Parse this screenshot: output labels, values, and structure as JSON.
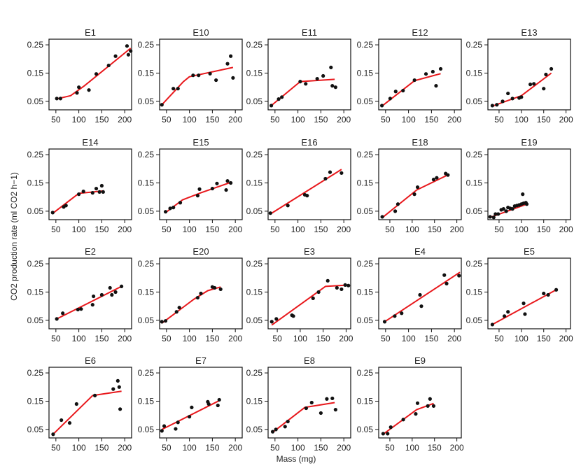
{
  "figure": {
    "ylabel": "CO2 production rate (ml CO2 h−1)",
    "xlabel": "Mass (mg)"
  },
  "chart_data": [
    {
      "type": "scatter",
      "title": "E1",
      "xlim": [
        35,
        215
      ],
      "ylim": [
        0.02,
        0.27
      ],
      "xticks": [
        50,
        100,
        150,
        200
      ],
      "yticks": [
        0.05,
        0.15,
        0.25
      ],
      "points": [
        [
          52,
          0.06
        ],
        [
          60,
          0.06
        ],
        [
          96,
          0.08
        ],
        [
          100,
          0.1
        ],
        [
          122,
          0.09
        ],
        [
          138,
          0.147
        ],
        [
          165,
          0.177
        ],
        [
          180,
          0.21
        ],
        [
          205,
          0.246
        ],
        [
          208,
          0.215
        ],
        [
          213,
          0.228
        ]
      ],
      "fit": [
        [
          50,
          0.058
        ],
        [
          82,
          0.07
        ],
        [
          112,
          0.105
        ],
        [
          213,
          0.238
        ]
      ]
    },
    {
      "type": "scatter",
      "title": "E10",
      "xlim": [
        35,
        215
      ],
      "ylim": [
        0.02,
        0.27
      ],
      "xticks": [
        50,
        100,
        150,
        200
      ],
      "yticks": [
        0.05,
        0.15,
        0.25
      ],
      "points": [
        [
          40,
          0.038
        ],
        [
          65,
          0.095
        ],
        [
          75,
          0.095
        ],
        [
          108,
          0.142
        ],
        [
          120,
          0.142
        ],
        [
          145,
          0.148
        ],
        [
          158,
          0.125
        ],
        [
          183,
          0.183
        ],
        [
          190,
          0.21
        ],
        [
          195,
          0.133
        ]
      ],
      "fit": [
        [
          40,
          0.038
        ],
        [
          87,
          0.12
        ],
        [
          100,
          0.137
        ],
        [
          195,
          0.17
        ]
      ]
    },
    {
      "type": "scatter",
      "title": "E11",
      "xlim": [
        35,
        215
      ],
      "ylim": [
        0.02,
        0.27
      ],
      "xticks": [
        50,
        100,
        150,
        200
      ],
      "yticks": [
        0.05,
        0.15,
        0.25
      ],
      "points": [
        [
          42,
          0.035
        ],
        [
          58,
          0.058
        ],
        [
          65,
          0.065
        ],
        [
          105,
          0.12
        ],
        [
          117,
          0.112
        ],
        [
          142,
          0.13
        ],
        [
          155,
          0.14
        ],
        [
          172,
          0.17
        ],
        [
          175,
          0.105
        ],
        [
          182,
          0.1
        ]
      ],
      "fit": [
        [
          42,
          0.035
        ],
        [
          105,
          0.12
        ],
        [
          180,
          0.128
        ]
      ]
    },
    {
      "type": "scatter",
      "title": "E12",
      "xlim": [
        35,
        215
      ],
      "ylim": [
        0.02,
        0.27
      ],
      "xticks": [
        50,
        100,
        150,
        200
      ],
      "yticks": [
        0.05,
        0.15,
        0.25
      ],
      "points": [
        [
          42,
          0.035
        ],
        [
          60,
          0.06
        ],
        [
          72,
          0.085
        ],
        [
          88,
          0.088
        ],
        [
          113,
          0.125
        ],
        [
          138,
          0.147
        ],
        [
          153,
          0.155
        ],
        [
          160,
          0.105
        ],
        [
          170,
          0.165
        ]
      ],
      "fit": [
        [
          42,
          0.033
        ],
        [
          113,
          0.123
        ],
        [
          170,
          0.148
        ]
      ]
    },
    {
      "type": "scatter",
      "title": "E13",
      "xlim": [
        25,
        210
      ],
      "ylim": [
        0.02,
        0.27
      ],
      "xticks": [
        50,
        100,
        150,
        200
      ],
      "yticks": [
        0.05,
        0.15,
        0.25
      ],
      "points": [
        [
          35,
          0.035
        ],
        [
          45,
          0.038
        ],
        [
          58,
          0.05
        ],
        [
          70,
          0.078
        ],
        [
          80,
          0.06
        ],
        [
          95,
          0.062
        ],
        [
          100,
          0.065
        ],
        [
          120,
          0.11
        ],
        [
          128,
          0.112
        ],
        [
          150,
          0.095
        ],
        [
          155,
          0.145
        ],
        [
          167,
          0.165
        ]
      ],
      "fit": [
        [
          35,
          0.033
        ],
        [
          100,
          0.07
        ],
        [
          167,
          0.15
        ]
      ]
    },
    {
      "type": "scatter",
      "title": "E14",
      "xlim": [
        35,
        215
      ],
      "ylim": [
        0.02,
        0.27
      ],
      "xticks": [
        50,
        100,
        150,
        200
      ],
      "yticks": [
        0.05,
        0.15,
        0.25
      ],
      "points": [
        [
          43,
          0.045
        ],
        [
          67,
          0.065
        ],
        [
          72,
          0.07
        ],
        [
          100,
          0.11
        ],
        [
          110,
          0.12
        ],
        [
          130,
          0.115
        ],
        [
          138,
          0.13
        ],
        [
          145,
          0.118
        ],
        [
          150,
          0.14
        ],
        [
          153,
          0.118
        ]
      ],
      "fit": [
        [
          43,
          0.042
        ],
        [
          100,
          0.113
        ],
        [
          155,
          0.122
        ]
      ]
    },
    {
      "type": "scatter",
      "title": "E15",
      "xlim": [
        35,
        215
      ],
      "ylim": [
        0.02,
        0.27
      ],
      "xticks": [
        50,
        100,
        150,
        200
      ],
      "yticks": [
        0.05,
        0.15,
        0.25
      ],
      "points": [
        [
          48,
          0.048
        ],
        [
          58,
          0.06
        ],
        [
          65,
          0.063
        ],
        [
          80,
          0.08
        ],
        [
          118,
          0.105
        ],
        [
          122,
          0.128
        ],
        [
          150,
          0.13
        ],
        [
          160,
          0.148
        ],
        [
          180,
          0.125
        ],
        [
          183,
          0.157
        ],
        [
          190,
          0.15
        ]
      ],
      "fit": [
        [
          48,
          0.045
        ],
        [
          85,
          0.09
        ],
        [
          125,
          0.115
        ],
        [
          190,
          0.152
        ]
      ]
    },
    {
      "type": "scatter",
      "title": "E16",
      "xlim": [
        35,
        215
      ],
      "ylim": [
        0.02,
        0.27
      ],
      "xticks": [
        50,
        100,
        150,
        200
      ],
      "yticks": [
        0.05,
        0.15,
        0.25
      ],
      "points": [
        [
          40,
          0.043
        ],
        [
          78,
          0.07
        ],
        [
          115,
          0.108
        ],
        [
          120,
          0.105
        ],
        [
          160,
          0.165
        ],
        [
          170,
          0.188
        ],
        [
          195,
          0.185
        ]
      ],
      "fit": [
        [
          40,
          0.04
        ],
        [
          195,
          0.198
        ]
      ]
    },
    {
      "type": "scatter",
      "title": "E18",
      "xlim": [
        25,
        210
      ],
      "ylim": [
        0.02,
        0.27
      ],
      "xticks": [
        50,
        100,
        150,
        200
      ],
      "yticks": [
        0.05,
        0.15,
        0.25
      ],
      "points": [
        [
          33,
          0.03
        ],
        [
          62,
          0.05
        ],
        [
          68,
          0.075
        ],
        [
          105,
          0.11
        ],
        [
          112,
          0.135
        ],
        [
          148,
          0.162
        ],
        [
          155,
          0.168
        ],
        [
          175,
          0.183
        ],
        [
          180,
          0.178
        ]
      ],
      "fit": [
        [
          33,
          0.027
        ],
        [
          110,
          0.125
        ],
        [
          182,
          0.18
        ]
      ]
    },
    {
      "type": "scatter",
      "title": "E19",
      "xlim": [
        25,
        210
      ],
      "ylim": [
        0.02,
        0.27
      ],
      "xticks": [
        50,
        100,
        150,
        200
      ],
      "yticks": [
        0.05,
        0.15,
        0.25
      ],
      "points": [
        [
          30,
          0.03
        ],
        [
          38,
          0.028
        ],
        [
          42,
          0.04
        ],
        [
          48,
          0.04
        ],
        [
          55,
          0.055
        ],
        [
          60,
          0.058
        ],
        [
          66,
          0.05
        ],
        [
          70,
          0.063
        ],
        [
          75,
          0.06
        ],
        [
          80,
          0.058
        ],
        [
          85,
          0.068
        ],
        [
          90,
          0.07
        ],
        [
          95,
          0.072
        ],
        [
          100,
          0.075
        ],
        [
          103,
          0.11
        ],
        [
          105,
          0.078
        ],
        [
          110,
          0.08
        ],
        [
          112,
          0.075
        ]
      ],
      "fit": [
        [
          30,
          0.028
        ],
        [
          112,
          0.075
        ]
      ]
    },
    {
      "type": "scatter",
      "title": "E2",
      "xlim": [
        35,
        215
      ],
      "ylim": [
        0.02,
        0.27
      ],
      "xticks": [
        50,
        100,
        150,
        200
      ],
      "yticks": [
        0.05,
        0.15,
        0.25
      ],
      "points": [
        [
          52,
          0.055
        ],
        [
          65,
          0.075
        ],
        [
          98,
          0.088
        ],
        [
          105,
          0.09
        ],
        [
          130,
          0.105
        ],
        [
          132,
          0.135
        ],
        [
          150,
          0.14
        ],
        [
          168,
          0.165
        ],
        [
          172,
          0.14
        ],
        [
          180,
          0.15
        ],
        [
          193,
          0.17
        ]
      ],
      "fit": [
        [
          52,
          0.055
        ],
        [
          193,
          0.17
        ]
      ]
    },
    {
      "type": "scatter",
      "title": "E20",
      "xlim": [
        35,
        215
      ],
      "ylim": [
        0.02,
        0.27
      ],
      "xticks": [
        50,
        100,
        150,
        200
      ],
      "yticks": [
        0.05,
        0.15,
        0.25
      ],
      "points": [
        [
          40,
          0.045
        ],
        [
          48,
          0.048
        ],
        [
          72,
          0.08
        ],
        [
          78,
          0.095
        ],
        [
          118,
          0.13
        ],
        [
          125,
          0.145
        ],
        [
          150,
          0.168
        ],
        [
          155,
          0.165
        ],
        [
          168,
          0.16
        ]
      ],
      "fit": [
        [
          40,
          0.04
        ],
        [
          110,
          0.125
        ],
        [
          140,
          0.155
        ],
        [
          168,
          0.168
        ]
      ]
    },
    {
      "type": "scatter",
      "title": "E3",
      "xlim": [
        30,
        210
      ],
      "ylim": [
        0.02,
        0.27
      ],
      "xticks": [
        50,
        100,
        150,
        200
      ],
      "yticks": [
        0.05,
        0.15,
        0.25
      ],
      "points": [
        [
          38,
          0.045
        ],
        [
          48,
          0.055
        ],
        [
          82,
          0.068
        ],
        [
          85,
          0.065
        ],
        [
          128,
          0.128
        ],
        [
          140,
          0.15
        ],
        [
          160,
          0.19
        ],
        [
          180,
          0.165
        ],
        [
          190,
          0.16
        ],
        [
          198,
          0.175
        ],
        [
          205,
          0.173
        ]
      ],
      "fit": [
        [
          38,
          0.033
        ],
        [
          155,
          0.17
        ],
        [
          207,
          0.175
        ]
      ]
    },
    {
      "type": "scatter",
      "title": "E4",
      "xlim": [
        35,
        215
      ],
      "ylim": [
        0.02,
        0.27
      ],
      "xticks": [
        50,
        100,
        150,
        200
      ],
      "yticks": [
        0.05,
        0.15,
        0.25
      ],
      "points": [
        [
          48,
          0.045
        ],
        [
          70,
          0.065
        ],
        [
          85,
          0.075
        ],
        [
          125,
          0.14
        ],
        [
          128,
          0.1
        ],
        [
          178,
          0.21
        ],
        [
          183,
          0.18
        ],
        [
          210,
          0.208
        ]
      ],
      "fit": [
        [
          48,
          0.045
        ],
        [
          212,
          0.22
        ]
      ]
    },
    {
      "type": "scatter",
      "title": "E5",
      "xlim": [
        25,
        210
      ],
      "ylim": [
        0.02,
        0.27
      ],
      "xticks": [
        50,
        100,
        150,
        200
      ],
      "yticks": [
        0.05,
        0.15,
        0.25
      ],
      "points": [
        [
          35,
          0.035
        ],
        [
          62,
          0.065
        ],
        [
          70,
          0.08
        ],
        [
          105,
          0.11
        ],
        [
          108,
          0.072
        ],
        [
          150,
          0.145
        ],
        [
          160,
          0.14
        ],
        [
          178,
          0.158
        ]
      ],
      "fit": [
        [
          35,
          0.035
        ],
        [
          178,
          0.158
        ]
      ]
    },
    {
      "type": "scatter",
      "title": "E6",
      "xlim": [
        35,
        215
      ],
      "ylim": [
        0.02,
        0.27
      ],
      "xticks": [
        50,
        100,
        150,
        200
      ],
      "yticks": [
        0.05,
        0.15,
        0.25
      ],
      "points": [
        [
          44,
          0.033
        ],
        [
          62,
          0.083
        ],
        [
          80,
          0.073
        ],
        [
          95,
          0.14
        ],
        [
          135,
          0.17
        ],
        [
          175,
          0.193
        ],
        [
          185,
          0.222
        ],
        [
          188,
          0.2
        ],
        [
          190,
          0.122
        ]
      ],
      "fit": [
        [
          44,
          0.033
        ],
        [
          130,
          0.17
        ],
        [
          193,
          0.185
        ]
      ]
    },
    {
      "type": "scatter",
      "title": "E7",
      "xlim": [
        35,
        215
      ],
      "ylim": [
        0.02,
        0.27
      ],
      "xticks": [
        50,
        100,
        150,
        200
      ],
      "yticks": [
        0.05,
        0.15,
        0.25
      ],
      "points": [
        [
          40,
          0.045
        ],
        [
          45,
          0.062
        ],
        [
          70,
          0.052
        ],
        [
          75,
          0.075
        ],
        [
          100,
          0.095
        ],
        [
          105,
          0.128
        ],
        [
          140,
          0.148
        ],
        [
          142,
          0.14
        ],
        [
          162,
          0.135
        ],
        [
          165,
          0.155
        ]
      ],
      "fit": [
        [
          40,
          0.05
        ],
        [
          165,
          0.152
        ]
      ]
    },
    {
      "type": "scatter",
      "title": "E8",
      "xlim": [
        35,
        215
      ],
      "ylim": [
        0.02,
        0.27
      ],
      "xticks": [
        50,
        100,
        150,
        200
      ],
      "yticks": [
        0.05,
        0.15,
        0.25
      ],
      "points": [
        [
          45,
          0.042
        ],
        [
          52,
          0.05
        ],
        [
          72,
          0.06
        ],
        [
          78,
          0.078
        ],
        [
          118,
          0.125
        ],
        [
          130,
          0.145
        ],
        [
          150,
          0.108
        ],
        [
          163,
          0.158
        ],
        [
          175,
          0.16
        ],
        [
          182,
          0.12
        ]
      ],
      "fit": [
        [
          45,
          0.04
        ],
        [
          115,
          0.128
        ],
        [
          180,
          0.145
        ]
      ]
    },
    {
      "type": "scatter",
      "title": "E9",
      "xlim": [
        25,
        210
      ],
      "ylim": [
        0.02,
        0.27
      ],
      "xticks": [
        50,
        100,
        150,
        200
      ],
      "yticks": [
        0.05,
        0.15,
        0.25
      ],
      "points": [
        [
          35,
          0.035
        ],
        [
          45,
          0.035
        ],
        [
          52,
          0.058
        ],
        [
          80,
          0.085
        ],
        [
          108,
          0.105
        ],
        [
          112,
          0.143
        ],
        [
          135,
          0.133
        ],
        [
          140,
          0.158
        ],
        [
          148,
          0.133
        ]
      ],
      "fit": [
        [
          35,
          0.033
        ],
        [
          110,
          0.12
        ],
        [
          148,
          0.142
        ]
      ]
    }
  ]
}
